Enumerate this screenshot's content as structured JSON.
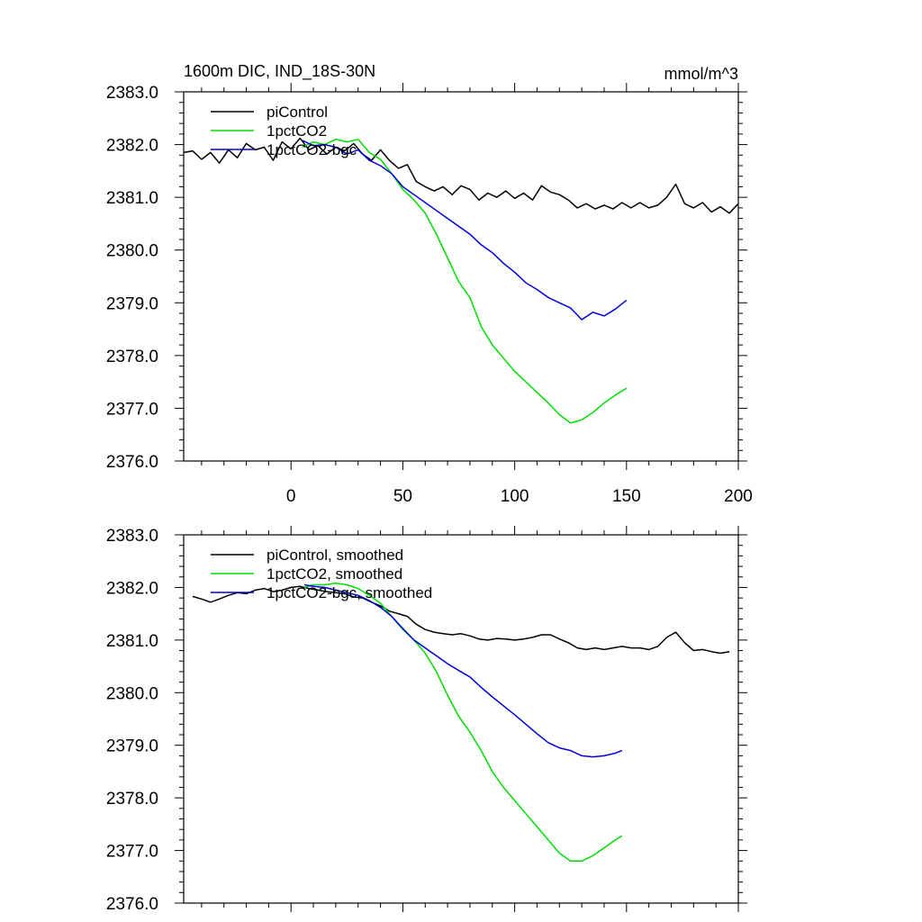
{
  "chart_data": [
    {
      "type": "line",
      "title": "1600m DIC, IND_18S-30N",
      "units": "mmol/m^3",
      "xlim": [
        -48,
        200
      ],
      "ylim": [
        2376.0,
        2383.0
      ],
      "xticks": [
        "0",
        "50",
        "100",
        "150",
        "200"
      ],
      "yticks": [
        "2376.0",
        "2377.0",
        "2378.0",
        "2379.0",
        "2380.0",
        "2381.0",
        "2382.0",
        "2383.0"
      ],
      "legend_position": "top-left",
      "series": [
        {
          "name": "piControl",
          "color": "#000000",
          "points": [
            [
              -48,
              2381.85
            ],
            [
              -44,
              2381.88
            ],
            [
              -40,
              2381.72
            ],
            [
              -36,
              2381.85
            ],
            [
              -32,
              2381.65
            ],
            [
              -28,
              2381.9
            ],
            [
              -24,
              2381.75
            ],
            [
              -20,
              2382.02
            ],
            [
              -16,
              2381.9
            ],
            [
              -12,
              2381.95
            ],
            [
              -8,
              2381.7
            ],
            [
              -4,
              2382.05
            ],
            [
              0,
              2381.92
            ],
            [
              4,
              2382.12
            ],
            [
              8,
              2381.9
            ],
            [
              12,
              2381.98
            ],
            [
              16,
              2381.82
            ],
            [
              20,
              2381.95
            ],
            [
              24,
              2381.88
            ],
            [
              28,
              2382.02
            ],
            [
              32,
              2381.82
            ],
            [
              36,
              2381.7
            ],
            [
              40,
              2381.9
            ],
            [
              44,
              2381.7
            ],
            [
              48,
              2381.55
            ],
            [
              52,
              2381.62
            ],
            [
              56,
              2381.3
            ],
            [
              60,
              2381.2
            ],
            [
              64,
              2381.12
            ],
            [
              68,
              2381.2
            ],
            [
              72,
              2381.05
            ],
            [
              76,
              2381.22
            ],
            [
              80,
              2381.15
            ],
            [
              84,
              2380.95
            ],
            [
              88,
              2381.08
            ],
            [
              92,
              2381.0
            ],
            [
              96,
              2381.12
            ],
            [
              100,
              2380.98
            ],
            [
              104,
              2381.08
            ],
            [
              108,
              2380.95
            ],
            [
              112,
              2381.22
            ],
            [
              116,
              2381.1
            ],
            [
              120,
              2381.05
            ],
            [
              124,
              2380.95
            ],
            [
              128,
              2380.8
            ],
            [
              132,
              2380.88
            ],
            [
              136,
              2380.78
            ],
            [
              140,
              2380.85
            ],
            [
              144,
              2380.78
            ],
            [
              148,
              2380.9
            ],
            [
              152,
              2380.8
            ],
            [
              156,
              2380.9
            ],
            [
              160,
              2380.8
            ],
            [
              164,
              2380.85
            ],
            [
              168,
              2381.0
            ],
            [
              172,
              2381.25
            ],
            [
              176,
              2380.88
            ],
            [
              180,
              2380.8
            ],
            [
              184,
              2380.9
            ],
            [
              188,
              2380.72
            ],
            [
              192,
              2380.82
            ],
            [
              196,
              2380.7
            ],
            [
              200,
              2380.88
            ]
          ]
        },
        {
          "name": "1pctCO2",
          "color": "#00dd00",
          "points": [
            [
              5,
              2381.95
            ],
            [
              10,
              2382.05
            ],
            [
              15,
              2382.0
            ],
            [
              20,
              2382.1
            ],
            [
              25,
              2382.05
            ],
            [
              30,
              2382.1
            ],
            [
              35,
              2381.85
            ],
            [
              40,
              2381.72
            ],
            [
              45,
              2381.45
            ],
            [
              50,
              2381.15
            ],
            [
              55,
              2380.95
            ],
            [
              60,
              2380.7
            ],
            [
              65,
              2380.3
            ],
            [
              70,
              2379.85
            ],
            [
              75,
              2379.4
            ],
            [
              80,
              2379.1
            ],
            [
              85,
              2378.55
            ],
            [
              90,
              2378.2
            ],
            [
              95,
              2377.95
            ],
            [
              100,
              2377.7
            ],
            [
              105,
              2377.5
            ],
            [
              110,
              2377.3
            ],
            [
              115,
              2377.1
            ],
            [
              120,
              2376.88
            ],
            [
              125,
              2376.72
            ],
            [
              130,
              2376.78
            ],
            [
              135,
              2376.92
            ],
            [
              140,
              2377.1
            ],
            [
              145,
              2377.25
            ],
            [
              150,
              2377.38
            ]
          ]
        },
        {
          "name": "1pctCO2-bgc",
          "color": "#0000dd",
          "points": [
            [
              5,
              2382.08
            ],
            [
              10,
              2381.98
            ],
            [
              15,
              2382.0
            ],
            [
              20,
              2381.95
            ],
            [
              25,
              2381.82
            ],
            [
              30,
              2381.9
            ],
            [
              35,
              2381.7
            ],
            [
              40,
              2381.6
            ],
            [
              45,
              2381.45
            ],
            [
              50,
              2381.2
            ],
            [
              55,
              2381.05
            ],
            [
              60,
              2380.9
            ],
            [
              65,
              2380.75
            ],
            [
              70,
              2380.6
            ],
            [
              75,
              2380.45
            ],
            [
              80,
              2380.3
            ],
            [
              85,
              2380.1
            ],
            [
              90,
              2379.95
            ],
            [
              95,
              2379.75
            ],
            [
              100,
              2379.58
            ],
            [
              105,
              2379.38
            ],
            [
              110,
              2379.25
            ],
            [
              115,
              2379.1
            ],
            [
              120,
              2379.0
            ],
            [
              125,
              2378.9
            ],
            [
              130,
              2378.68
            ],
            [
              135,
              2378.82
            ],
            [
              140,
              2378.75
            ],
            [
              145,
              2378.88
            ],
            [
              150,
              2379.05
            ]
          ]
        }
      ]
    },
    {
      "type": "line",
      "xlim": [
        -48,
        200
      ],
      "ylim": [
        2376.0,
        2383.0
      ],
      "yticks": [
        "2376.0",
        "2377.0",
        "2378.0",
        "2379.0",
        "2380.0",
        "2381.0",
        "2382.0",
        "2383.0"
      ],
      "legend_position": "top-left",
      "series": [
        {
          "name": "piControl, smoothed",
          "color": "#000000",
          "points": [
            [
              -44,
              2381.83
            ],
            [
              -40,
              2381.78
            ],
            [
              -36,
              2381.72
            ],
            [
              -32,
              2381.78
            ],
            [
              -28,
              2381.85
            ],
            [
              -24,
              2381.9
            ],
            [
              -20,
              2381.88
            ],
            [
              -16,
              2381.95
            ],
            [
              -12,
              2381.98
            ],
            [
              -8,
              2381.92
            ],
            [
              -4,
              2381.95
            ],
            [
              0,
              2382.0
            ],
            [
              4,
              2382.02
            ],
            [
              8,
              2381.98
            ],
            [
              12,
              2381.95
            ],
            [
              16,
              2381.92
            ],
            [
              20,
              2381.9
            ],
            [
              24,
              2381.88
            ],
            [
              28,
              2381.82
            ],
            [
              32,
              2381.8
            ],
            [
              36,
              2381.72
            ],
            [
              40,
              2381.65
            ],
            [
              44,
              2381.55
            ],
            [
              48,
              2381.5
            ],
            [
              52,
              2381.45
            ],
            [
              56,
              2381.3
            ],
            [
              60,
              2381.2
            ],
            [
              64,
              2381.15
            ],
            [
              68,
              2381.12
            ],
            [
              72,
              2381.1
            ],
            [
              76,
              2381.12
            ],
            [
              80,
              2381.08
            ],
            [
              84,
              2381.02
            ],
            [
              88,
              2381.0
            ],
            [
              92,
              2381.03
            ],
            [
              96,
              2381.02
            ],
            [
              100,
              2381.0
            ],
            [
              104,
              2381.02
            ],
            [
              108,
              2381.05
            ],
            [
              112,
              2381.1
            ],
            [
              116,
              2381.1
            ],
            [
              120,
              2381.02
            ],
            [
              124,
              2380.95
            ],
            [
              128,
              2380.85
            ],
            [
              132,
              2380.82
            ],
            [
              136,
              2380.85
            ],
            [
              140,
              2380.82
            ],
            [
              144,
              2380.85
            ],
            [
              148,
              2380.88
            ],
            [
              152,
              2380.85
            ],
            [
              156,
              2380.85
            ],
            [
              160,
              2380.82
            ],
            [
              164,
              2380.88
            ],
            [
              168,
              2381.05
            ],
            [
              172,
              2381.15
            ],
            [
              176,
              2380.95
            ],
            [
              180,
              2380.8
            ],
            [
              184,
              2380.82
            ],
            [
              188,
              2380.78
            ],
            [
              192,
              2380.75
            ],
            [
              196,
              2380.78
            ]
          ]
        },
        {
          "name": "1pctCO2, smoothed",
          "color": "#00dd00",
          "points": [
            [
              6,
              2382.0
            ],
            [
              10,
              2382.05
            ],
            [
              15,
              2382.05
            ],
            [
              20,
              2382.08
            ],
            [
              25,
              2382.05
            ],
            [
              30,
              2381.98
            ],
            [
              35,
              2381.85
            ],
            [
              40,
              2381.7
            ],
            [
              45,
              2381.45
            ],
            [
              50,
              2381.2
            ],
            [
              55,
              2381.0
            ],
            [
              60,
              2380.75
            ],
            [
              65,
              2380.4
            ],
            [
              70,
              2379.95
            ],
            [
              75,
              2379.55
            ],
            [
              80,
              2379.25
            ],
            [
              85,
              2378.9
            ],
            [
              90,
              2378.5
            ],
            [
              95,
              2378.2
            ],
            [
              100,
              2377.95
            ],
            [
              105,
              2377.7
            ],
            [
              110,
              2377.45
            ],
            [
              115,
              2377.2
            ],
            [
              120,
              2376.95
            ],
            [
              125,
              2376.8
            ],
            [
              130,
              2376.8
            ],
            [
              135,
              2376.9
            ],
            [
              140,
              2377.05
            ],
            [
              145,
              2377.2
            ],
            [
              148,
              2377.28
            ]
          ]
        },
        {
          "name": "1pctCO2-bgc, smoothed",
          "color": "#0000dd",
          "points": [
            [
              6,
              2382.05
            ],
            [
              10,
              2382.02
            ],
            [
              15,
              2382.0
            ],
            [
              20,
              2381.95
            ],
            [
              25,
              2381.9
            ],
            [
              30,
              2381.85
            ],
            [
              35,
              2381.75
            ],
            [
              40,
              2381.62
            ],
            [
              45,
              2381.45
            ],
            [
              50,
              2381.22
            ],
            [
              55,
              2381.0
            ],
            [
              60,
              2380.85
            ],
            [
              65,
              2380.7
            ],
            [
              70,
              2380.55
            ],
            [
              75,
              2380.42
            ],
            [
              80,
              2380.3
            ],
            [
              85,
              2380.1
            ],
            [
              90,
              2379.92
            ],
            [
              95,
              2379.75
            ],
            [
              100,
              2379.58
            ],
            [
              105,
              2379.4
            ],
            [
              110,
              2379.22
            ],
            [
              115,
              2379.05
            ],
            [
              120,
              2378.95
            ],
            [
              125,
              2378.9
            ],
            [
              130,
              2378.8
            ],
            [
              135,
              2378.78
            ],
            [
              140,
              2378.8
            ],
            [
              145,
              2378.85
            ],
            [
              148,
              2378.9
            ]
          ]
        }
      ]
    }
  ]
}
